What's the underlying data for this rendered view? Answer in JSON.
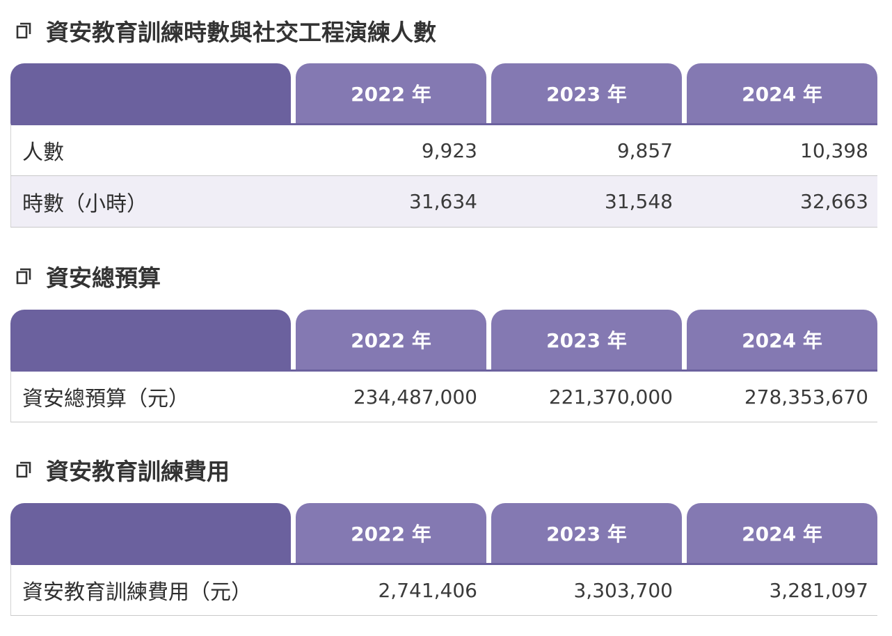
{
  "sections": [
    {
      "title": "資安教育訓練時數與社交工程演練人數",
      "headers": [
        "",
        "2022 年",
        "2023 年",
        "2024 年"
      ],
      "rows": [
        {
          "label": "人數",
          "values": [
            "9,923",
            "9,857",
            "10,398"
          ]
        },
        {
          "label": "時數（小時）",
          "values": [
            "31,634",
            "31,548",
            "32,663"
          ]
        }
      ]
    },
    {
      "title": "資安總預算",
      "headers": [
        "",
        "2022 年",
        "2023 年",
        "2024 年"
      ],
      "rows": [
        {
          "label": "資安總預算（元）",
          "values": [
            "234,487,000",
            "221,370,000",
            "278,353,670"
          ]
        }
      ]
    },
    {
      "title": "資安教育訓練費用",
      "headers": [
        "",
        "2022 年",
        "2023 年",
        "2024 年"
      ],
      "rows": [
        {
          "label": "資安教育訓練費用（元）",
          "values": [
            "2,741,406",
            "3,303,700",
            "3,281,097"
          ]
        }
      ]
    }
  ],
  "colors": {
    "header_dark": "#6b619e",
    "header_light": "#8479b2",
    "row_shade": "#f0eef6"
  },
  "icons": {
    "section": "document-copy-icon"
  }
}
